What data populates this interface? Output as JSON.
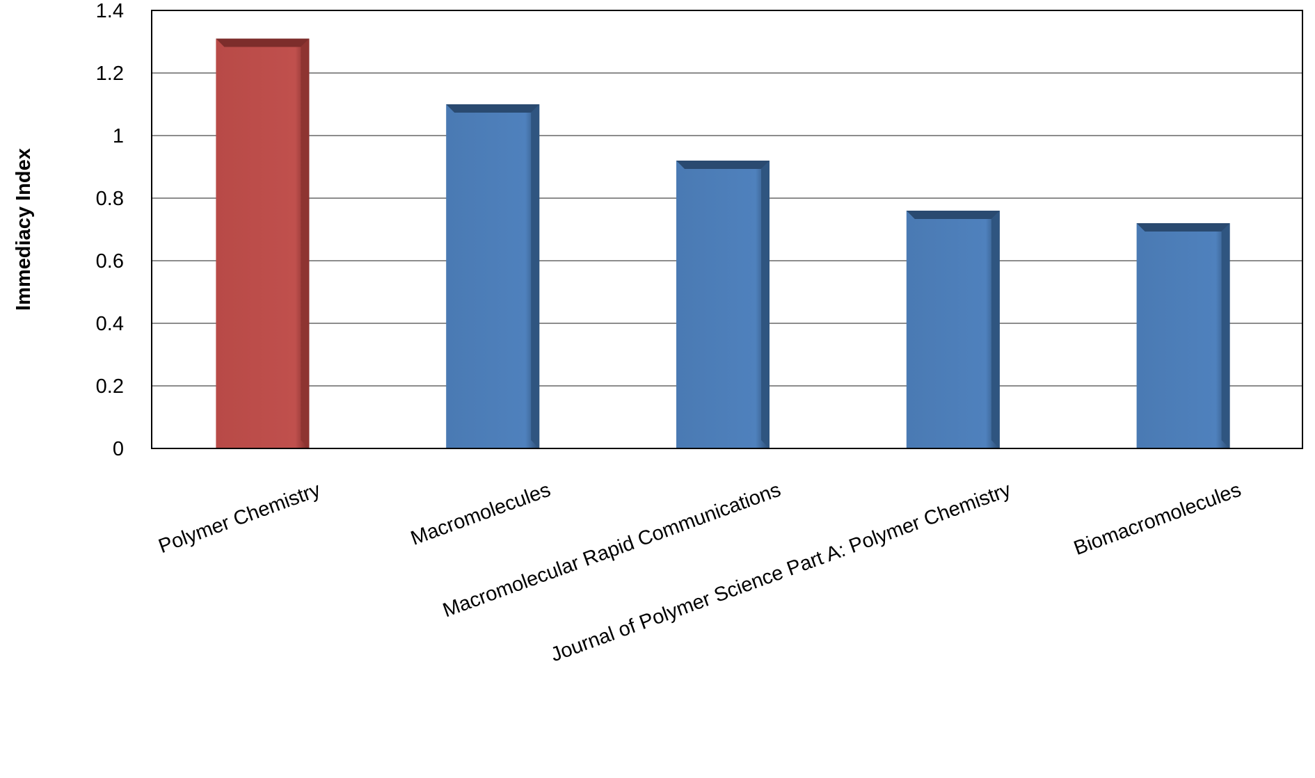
{
  "chart_data": {
    "type": "bar",
    "categories": [
      "Polymer Chemistry",
      "Macromolecules",
      "Macromolecular Rapid Communications",
      "Journal of Polymer Science Part A: Polymer Chemistry",
      "Biomacromolecules"
    ],
    "values": [
      1.31,
      1.1,
      0.92,
      0.76,
      0.72
    ],
    "bar_colors": [
      "#c0504d",
      "#4f81bd",
      "#4f81bd",
      "#4f81bd",
      "#4f81bd"
    ],
    "highlight_color": "#c0504d",
    "default_color": "#4f81bd",
    "title": "",
    "xlabel": "",
    "ylabel": "Immediacy Index",
    "ylim": [
      0,
      1.4
    ],
    "yticks": [
      "0",
      "0.2",
      "0.4",
      "0.6",
      "0.8",
      "1",
      "1.2",
      "1.4"
    ],
    "grid": true,
    "legend": "none"
  }
}
